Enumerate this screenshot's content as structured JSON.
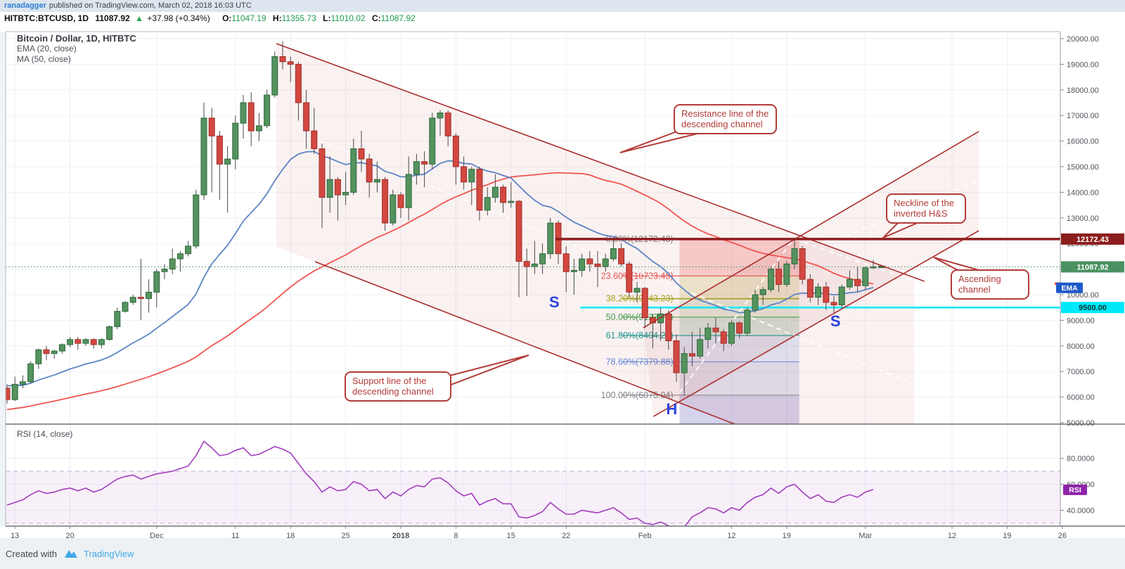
{
  "header": {
    "author": "ranadagger",
    "published": "published on TradingView.com, March 02, 2018 16:03 UTC"
  },
  "symbol_bar": {
    "symbol": "HITBTC:BTCUSD, 1D",
    "last": "11087.92",
    "arrow": "▲",
    "change": "+37.98 (+0.34%)",
    "o_label": "O:",
    "o_value": "11047.19",
    "h_label": "H:",
    "h_value": "11355.73",
    "l_label": "L:",
    "l_value": "11010.02",
    "c_label": "C:",
    "c_value": "11087.92"
  },
  "legend": {
    "title": "Bitcoin / Dollar, 1D, HITBTC",
    "ema": "EMA (20, close)",
    "ma": "MA (50, close)"
  },
  "callouts": {
    "resistance": "Resistance line of the descending channel",
    "neckline": "Neckline of the inverted H&S",
    "ascending": "Ascending channel",
    "support": "Support line of the descending channel"
  },
  "footer": {
    "created": "Created with",
    "brand": "TradingView"
  },
  "chart_data": {
    "type": "candlestick",
    "title": "Bitcoin / Dollar, 1D, HITBTC",
    "start_date": "2017-11-12",
    "interval": "1D",
    "price_axis": {
      "min": 4900,
      "max": 20300,
      "ticks": [
        5000,
        6000,
        7000,
        8000,
        9000,
        10000,
        11000,
        12000,
        13000,
        14000,
        15000,
        16000,
        17000,
        18000,
        19000,
        20000
      ]
    },
    "time_ticks": [
      [
        "13",
        1
      ],
      [
        "20",
        8
      ],
      [
        "Dec",
        19
      ],
      [
        "11",
        29
      ],
      [
        "18",
        36
      ],
      [
        "25",
        43
      ],
      [
        "2018",
        50
      ],
      [
        "8",
        57
      ],
      [
        "15",
        64
      ],
      [
        "22",
        71
      ],
      [
        "Feb",
        81
      ],
      [
        "12",
        92
      ],
      [
        "19",
        99
      ],
      [
        "Mar",
        109
      ],
      [
        "12",
        120
      ],
      [
        "19",
        127
      ],
      [
        "26",
        134
      ]
    ],
    "candles": [
      [
        6350,
        6500,
        5750,
        5900
      ],
      [
        5900,
        6800,
        5850,
        6500
      ],
      [
        6500,
        6850,
        6350,
        6600
      ],
      [
        6600,
        7400,
        6550,
        7300
      ],
      [
        7300,
        7900,
        7100,
        7850
      ],
      [
        7850,
        8000,
        7450,
        7700
      ],
      [
        7700,
        7850,
        7500,
        7800
      ],
      [
        7800,
        8100,
        7700,
        8050
      ],
      [
        8050,
        8350,
        7950,
        8250
      ],
      [
        8250,
        8350,
        7850,
        8100
      ],
      [
        8100,
        8300,
        8000,
        8250
      ],
      [
        8250,
        8300,
        7900,
        8050
      ],
      [
        8050,
        8300,
        7900,
        8250
      ],
      [
        8250,
        8800,
        8200,
        8750
      ],
      [
        8750,
        9500,
        8650,
        9350
      ],
      [
        9350,
        9750,
        9300,
        9700
      ],
      [
        9700,
        10000,
        9600,
        9900
      ],
      [
        9900,
        11400,
        9000,
        9850
      ],
      [
        9850,
        10600,
        9300,
        10100
      ],
      [
        10100,
        11000,
        9500,
        10900
      ],
      [
        10900,
        11200,
        10600,
        11000
      ],
      [
        11000,
        11800,
        10800,
        11400
      ],
      [
        11400,
        11700,
        10900,
        11600
      ],
      [
        11600,
        12100,
        11500,
        11900
      ],
      [
        11900,
        14100,
        11800,
        13900
      ],
      [
        13900,
        17500,
        13700,
        16900
      ],
      [
        16900,
        17300,
        14000,
        16200
      ],
      [
        16200,
        16400,
        13700,
        15100
      ],
      [
        15100,
        15800,
        13200,
        15300
      ],
      [
        15300,
        17000,
        14900,
        16700
      ],
      [
        16700,
        17800,
        16100,
        17500
      ],
      [
        17500,
        17900,
        15800,
        16400
      ],
      [
        16400,
        17100,
        16000,
        16600
      ],
      [
        16600,
        18000,
        16500,
        17800
      ],
      [
        17800,
        19500,
        17700,
        19300
      ],
      [
        19300,
        19900,
        18800,
        19100
      ],
      [
        19100,
        19300,
        18300,
        19000
      ],
      [
        19000,
        19100,
        16800,
        17500
      ],
      [
        17500,
        18000,
        15700,
        16400
      ],
      [
        16400,
        17300,
        15500,
        15700
      ],
      [
        15700,
        15900,
        12600,
        13800
      ],
      [
        13800,
        15400,
        13200,
        14500
      ],
      [
        14500,
        14600,
        12900,
        13900
      ],
      [
        13900,
        14800,
        13500,
        14000
      ],
      [
        14000,
        16100,
        13900,
        15700
      ],
      [
        15700,
        16400,
        14800,
        15300
      ],
      [
        15300,
        15500,
        13800,
        14400
      ],
      [
        14400,
        15200,
        14000,
        14500
      ],
      [
        14500,
        14600,
        12500,
        12800
      ],
      [
        12800,
        14100,
        12700,
        13900
      ],
      [
        13900,
        14000,
        13000,
        13400
      ],
      [
        13400,
        15400,
        12900,
        14700
      ],
      [
        14700,
        15500,
        14300,
        15200
      ],
      [
        15200,
        15600,
        14200,
        15100
      ],
      [
        15100,
        17100,
        14900,
        16900
      ],
      [
        16900,
        17200,
        16200,
        17100
      ],
      [
        17100,
        17200,
        15800,
        16200
      ],
      [
        16200,
        16300,
        14300,
        15000
      ],
      [
        15000,
        15400,
        14100,
        14400
      ],
      [
        14400,
        15000,
        13500,
        14900
      ],
      [
        14900,
        15000,
        12900,
        13300
      ],
      [
        13300,
        14200,
        13100,
        13800
      ],
      [
        13800,
        14700,
        13600,
        14200
      ],
      [
        14200,
        14300,
        13200,
        13600
      ],
      [
        13600,
        14400,
        13400,
        13650
      ],
      [
        13650,
        13700,
        9900,
        11300
      ],
      [
        11300,
        11800,
        9950,
        11100
      ],
      [
        11100,
        12100,
        10800,
        11200
      ],
      [
        11200,
        12000,
        10800,
        11600
      ],
      [
        11600,
        13000,
        11400,
        12800
      ],
      [
        12800,
        12900,
        11200,
        11600
      ],
      [
        11600,
        11900,
        10100,
        10900
      ],
      [
        10900,
        11400,
        10000,
        10950
      ],
      [
        10950,
        11600,
        10700,
        11400
      ],
      [
        11400,
        11700,
        10900,
        11200
      ],
      [
        11200,
        11700,
        10300,
        11100
      ],
      [
        11100,
        11600,
        10900,
        11400
      ],
      [
        11400,
        12200,
        11300,
        11800
      ],
      [
        11800,
        12000,
        11100,
        11200
      ],
      [
        11200,
        11300,
        9900,
        10100
      ],
      [
        10100,
        10500,
        9700,
        10250
      ],
      [
        10250,
        10300,
        8700,
        9100
      ],
      [
        9100,
        9250,
        7900,
        8900
      ],
      [
        8900,
        9500,
        8200,
        9250
      ],
      [
        9250,
        9400,
        7850,
        8200
      ],
      [
        8200,
        8450,
        6600,
        6950
      ],
      [
        6950,
        7950,
        6075.04,
        7700
      ],
      [
        7700,
        8550,
        7200,
        7600
      ],
      [
        7600,
        8700,
        7500,
        8250
      ],
      [
        8250,
        8900,
        7900,
        8700
      ],
      [
        8700,
        9100,
        8100,
        8550
      ],
      [
        8550,
        8650,
        7800,
        8100
      ],
      [
        8100,
        9000,
        8000,
        8900
      ],
      [
        8900,
        8950,
        8300,
        8500
      ],
      [
        8500,
        9500,
        8400,
        9400
      ],
      [
        9400,
        10200,
        9300,
        10000
      ],
      [
        10000,
        10300,
        9600,
        10200
      ],
      [
        10200,
        11100,
        10100,
        11000
      ],
      [
        11000,
        11300,
        10100,
        10400
      ],
      [
        10400,
        11300,
        10300,
        11200
      ],
      [
        11200,
        12172.43,
        11000,
        11800
      ],
      [
        11800,
        11900,
        10400,
        10600
      ],
      [
        10600,
        10800,
        9700,
        9900
      ],
      [
        9900,
        10450,
        9600,
        10300
      ],
      [
        10300,
        10500,
        9400,
        9700
      ],
      [
        9700,
        9950,
        9300,
        9600
      ],
      [
        9600,
        10400,
        9500,
        10300
      ],
      [
        10300,
        10950,
        10200,
        10600
      ],
      [
        10600,
        11100,
        10100,
        10350
      ],
      [
        10350,
        11100,
        10200,
        11050
      ],
      [
        11047.19,
        11355.73,
        11010.02,
        11087.92
      ]
    ],
    "overlays": {
      "ema": {
        "label": "EMA (20, close)",
        "period": 20,
        "color": "#5b84c4",
        "badge": "EMA"
      },
      "ma": {
        "label": "MA (50, close)",
        "period": 50,
        "color": "#f0544f"
      }
    },
    "fib": {
      "label_anchor_day": 84.6,
      "line_days": [
        78.1,
        100.6
      ],
      "zone_days": [
        85.4,
        100.6
      ],
      "levels": [
        {
          "label": "0.00%(12172.43)",
          "price": 12172.43,
          "color": "#808389"
        },
        {
          "label": "23.60%(10733.45)",
          "price": 10733.45,
          "color": "#e65550"
        },
        {
          "label": "38.20%(9843.23)",
          "price": 9843.23,
          "color": "#a5ad1c"
        },
        {
          "label": "50.00%(9123.74)",
          "price": 9123.74,
          "color": "#3fa34d"
        },
        {
          "label": "61.80%(8404.24)",
          "price": 8404.24,
          "color": "#16a09a"
        },
        {
          "label": "78.60%(7379.88)",
          "price": 7379.88,
          "color": "#5f8fe8"
        },
        {
          "label": "100.00%(6075.04)",
          "price": 6075.04,
          "color": "#808389"
        }
      ],
      "band_colors": [
        "rgba(239,83,80,0.25)",
        "rgba(181,178,54,0.22)",
        "rgba(146,205,128,0.22)",
        "rgba(84,170,128,0.22)",
        "rgba(118,158,217,0.22)",
        "rgba(122,132,190,0.22)"
      ],
      "below_band_color": "rgba(118,108,196,0.30)"
    },
    "drawings": {
      "descending_channel": {
        "color": "#ab2f2f",
        "resistance": [
          [
            34.2,
            19808
          ],
          [
            116.5,
            10522
          ]
        ],
        "support": [
          [
            39.1,
            11291
          ],
          [
            92.4,
            4945
          ]
        ],
        "fill": [
          [
            34.2,
            19808
          ],
          [
            115.2,
            10637
          ],
          [
            115.2,
            4945
          ],
          [
            92.4,
            4945
          ],
          [
            39.1,
            11291
          ],
          [
            34.2,
            11868
          ]
        ],
        "fill_color": "rgba(180,60,60,0.07)"
      },
      "ascending_channel": {
        "color": "#ab2f2f",
        "upper": [
          [
            80.8,
            8709
          ],
          [
            123.4,
            16374
          ]
        ],
        "lower": [
          [
            82.1,
            5247
          ],
          [
            123.4,
            12500
          ]
        ],
        "fill": [
          [
            80.8,
            8709
          ],
          [
            123.4,
            16374
          ],
          [
            123.4,
            12500
          ],
          [
            82.1,
            5247
          ]
        ],
        "fill_color": "rgba(180,60,60,0.07)"
      },
      "dashed_white": [
        [
          [
            39.7,
            16016
          ],
          [
            116.8,
            6291
          ]
        ],
        [
          [
            85.4,
            6181
          ],
          [
            100,
            12225
          ]
        ],
        [
          [
            105.4,
            12143
          ],
          [
            123.4,
            14451
          ]
        ],
        [
          [
            100,
            12170
          ],
          [
            115.2,
            10522
          ]
        ]
      ],
      "neckline": {
        "price": 12172.43,
        "from_day": 69.6,
        "color": "#8f1d1d",
        "badge": "12172.43"
      },
      "cyan_line": {
        "price": 9500,
        "from_day": 72.8,
        "color": "#00e9fb",
        "badge": "9500.00"
      },
      "close_line": {
        "price": 11087.92,
        "color": "#2e8b4f",
        "badge": "11087.92",
        "badge_color": "#4a9262"
      },
      "letters": [
        {
          "t": "S",
          "day": 69.5,
          "price": 9506
        },
        {
          "t": "H",
          "day": 84.4,
          "price": 5330
        },
        {
          "t": "S",
          "day": 105.2,
          "price": 8764
        }
      ],
      "letter_color": "#2b43e0"
    },
    "rsi": {
      "label": "RSI (14, close)",
      "color": "#a13dbd",
      "band": [
        30,
        70
      ],
      "ticks": [
        40,
        60,
        80
      ],
      "badge": "RSI",
      "values": [
        44,
        46,
        48,
        52,
        55,
        53,
        54,
        56,
        57,
        55,
        57,
        54,
        56,
        60,
        64,
        66,
        67,
        64,
        66,
        68,
        69,
        70,
        72,
        74,
        82,
        93,
        88,
        82,
        83,
        86,
        88,
        82,
        83,
        86,
        89,
        87,
        84,
        76,
        68,
        62,
        54,
        58,
        55,
        56,
        62,
        60,
        55,
        56,
        49,
        54,
        51,
        56,
        59,
        58,
        64,
        65,
        61,
        55,
        51,
        53,
        44,
        47,
        49,
        45,
        45,
        35,
        34,
        36,
        39,
        46,
        41,
        37,
        37,
        40,
        39,
        38,
        40,
        42,
        38,
        33,
        34,
        30,
        29,
        31,
        28,
        26,
        27,
        35,
        38,
        42,
        41,
        38,
        42,
        40,
        46,
        50,
        52,
        57,
        53,
        58,
        60,
        54,
        49,
        52,
        47,
        46,
        50,
        52,
        50,
        54,
        56
      ]
    }
  }
}
